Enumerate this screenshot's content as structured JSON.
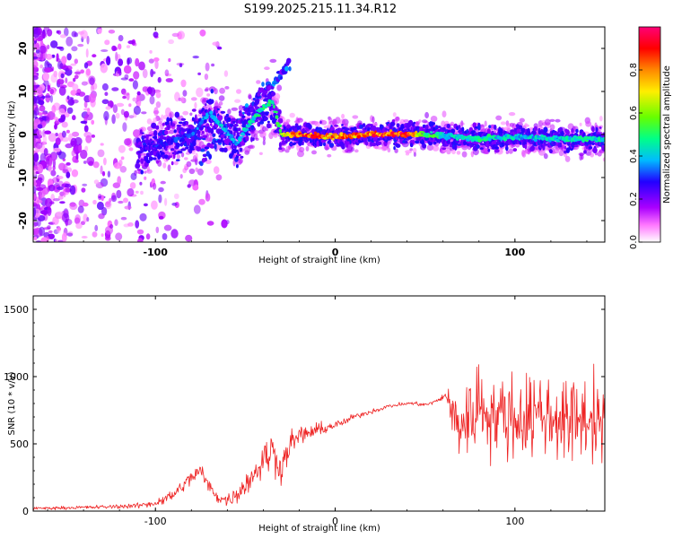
{
  "chart_data": [
    {
      "type": "heatmap",
      "title": "S199.2025.215.11.34.R12",
      "xlabel": "Height of straight line (km)",
      "ylabel": "Frequency (Hz)",
      "xlim": [
        -168,
        150
      ],
      "ylim": [
        -25,
        25
      ],
      "xticks": [
        -100,
        0,
        100
      ],
      "yticks": [
        -20,
        -10,
        0,
        10,
        20
      ],
      "colorbar": {
        "label": "Normalized spectral amplitude",
        "range": [
          0.0,
          1.0
        ],
        "ticks": [
          "0.0",
          "0.2",
          "0.4",
          "0.6",
          "0.8"
        ],
        "colors": [
          "#ffffff",
          "#ff66ff",
          "#8800ff",
          "#2200ff",
          "#00ddff",
          "#00ff66",
          "#bbff00",
          "#ffaa00",
          "#ff0000",
          "#ff0088"
        ]
      },
      "ridge": {
        "description_points_x": [
          -100,
          -80,
          -70,
          -55,
          -45,
          -35,
          -30,
          -20,
          0,
          20,
          40,
          50,
          65,
          80,
          100,
          120,
          140,
          150
        ],
        "frequency_y": [
          -3,
          0,
          5,
          -2,
          4,
          8,
          0,
          0,
          -0.5,
          0,
          0,
          0,
          -0.5,
          -1,
          -0.5,
          -1,
          -1,
          -1
        ],
        "peak_amplitude": [
          0.3,
          0.35,
          0.4,
          0.45,
          0.5,
          0.55,
          0.7,
          0.95,
          0.85,
          0.9,
          1.0,
          0.6,
          0.45,
          0.5,
          0.45,
          0.45,
          0.5,
          0.45
        ]
      }
    },
    {
      "type": "line",
      "title": "",
      "xlabel": "Height of straight line (km)",
      "ylabel": "SNR (10 * v/v)",
      "xlim": [
        -168,
        150
      ],
      "ylim": [
        0,
        1600
      ],
      "xticks": [
        -100,
        0,
        100
      ],
      "yticks": [
        0,
        500,
        1000,
        1500
      ],
      "line_color": "#ee2222",
      "series": [
        {
          "x": [
            -168,
            -150,
            -130,
            -110,
            -100,
            -90,
            -80,
            -75,
            -70,
            -65,
            -60,
            -55,
            -50,
            -45,
            -40,
            -35,
            -30,
            -25,
            -20,
            -15,
            -10,
            -5,
            0,
            5,
            10,
            15,
            20,
            25,
            30,
            35,
            40,
            45,
            50,
            55,
            58,
            60,
            62,
            65,
            70,
            75,
            80,
            85,
            90,
            95,
            100,
            105,
            110,
            115,
            120,
            125,
            130,
            135,
            140,
            145,
            150
          ],
          "y": [
            20,
            25,
            30,
            40,
            60,
            120,
            250,
            300,
            180,
            100,
            80,
            120,
            200,
            280,
            380,
            450,
            320,
            500,
            560,
            580,
            600,
            620,
            640,
            660,
            700,
            720,
            740,
            760,
            780,
            790,
            800,
            800,
            790,
            810,
            830,
            850,
            860,
            700,
            650,
            700,
            800,
            750,
            700,
            720,
            680,
            700,
            720,
            740,
            680,
            720,
            640,
            700,
            680,
            700,
            660
          ],
          "noise_amplitude": [
            15,
            15,
            20,
            25,
            40,
            60,
            80,
            80,
            70,
            60,
            60,
            80,
            120,
            150,
            180,
            200,
            160,
            120,
            100,
            80,
            70,
            60,
            40,
            35,
            30,
            25,
            25,
            20,
            20,
            20,
            20,
            20,
            20,
            20,
            25,
            30,
            40,
            380,
            420,
            420,
            420,
            420,
            420,
            420,
            420,
            400,
            420,
            420,
            420,
            420,
            420,
            420,
            420,
            420,
            420
          ]
        }
      ]
    }
  ]
}
